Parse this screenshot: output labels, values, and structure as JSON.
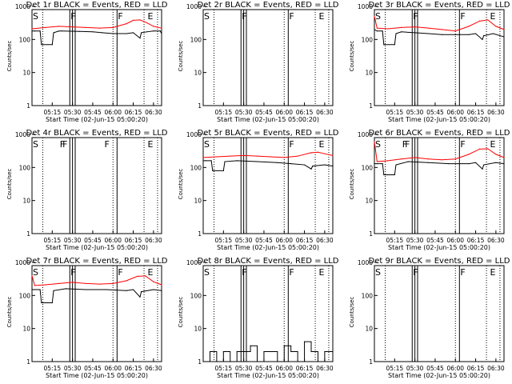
{
  "figure": {
    "start_label": "Start Time (02-Jun-15 05:00:20)",
    "x_tick_labels": [
      "05:15",
      "05:30",
      "05:45",
      "06:00",
      "06:15",
      "06:30"
    ],
    "y_axis_label": "Counts/sec",
    "y_tick_labels": [
      "1",
      "10",
      "100",
      "1000"
    ],
    "colors": {
      "events": "#000000",
      "lld": "#ff0000"
    }
  },
  "chart_data": [
    {
      "type": "line",
      "title": "Det 1r BLACK = Events, RED = LLD",
      "xlabel": "Start Time (02-Jun-15 05:00:20)",
      "ylabel": "Counts/sec",
      "yscale": "log",
      "ylim": [
        1,
        1000
      ],
      "flags": [
        {
          "label": "S",
          "x": 0
        },
        {
          "label": "F",
          "x": 28
        },
        {
          "label": "F",
          "x": 63
        },
        {
          "label": "E",
          "x": 85
        }
      ],
      "series": [
        {
          "name": "Events",
          "color": "#000000",
          "x": [
            0,
            2,
            6,
            7,
            15,
            16,
            20,
            22,
            35,
            45,
            52,
            60,
            70,
            75,
            80,
            81,
            85,
            90,
            95,
            96
          ],
          "y": [
            180,
            180,
            180,
            70,
            70,
            160,
            180,
            180,
            175,
            170,
            160,
            150,
            150,
            160,
            110,
            160,
            170,
            180,
            180,
            150
          ]
        },
        {
          "name": "LLD",
          "color": "#ff0000",
          "x": [
            0,
            10,
            20,
            30,
            40,
            50,
            60,
            70,
            75,
            80,
            85,
            90,
            96
          ],
          "y": [
            210,
            230,
            250,
            240,
            230,
            220,
            230,
            300,
            380,
            390,
            320,
            250,
            220
          ]
        }
      ]
    },
    {
      "type": "line",
      "title": "Det 2r BLACK = Events, RED = LLD",
      "xlabel": "Start Time (02-Jun-15 05:00:20)",
      "ylabel": "Counts/sec",
      "yscale": "log",
      "ylim": [
        1,
        1000
      ],
      "flags": [
        {
          "label": "S",
          "x": 0
        },
        {
          "label": "F",
          "x": 28
        },
        {
          "label": "F",
          "x": 63
        },
        {
          "label": "E",
          "x": 85
        }
      ],
      "series": []
    },
    {
      "type": "line",
      "title": "Det 3r BLACK = Events, RED = LLD",
      "xlabel": "Start Time (02-Jun-15 05:00:20)",
      "ylabel": "Counts/sec",
      "yscale": "log",
      "ylim": [
        1,
        1000
      ],
      "flags": [
        {
          "label": "S",
          "x": 0
        },
        {
          "label": "F",
          "x": 28
        },
        {
          "label": "F",
          "x": 63
        },
        {
          "label": "E",
          "x": 85
        }
      ],
      "series": [
        {
          "name": "Events",
          "color": "#000000",
          "x": [
            0,
            2,
            6,
            7,
            15,
            16,
            20,
            30,
            40,
            50,
            60,
            70,
            75,
            80,
            81,
            88,
            96
          ],
          "y": [
            200,
            180,
            180,
            70,
            70,
            150,
            170,
            160,
            150,
            140,
            140,
            140,
            150,
            100,
            130,
            150,
            120
          ]
        },
        {
          "name": "LLD",
          "color": "#ff0000",
          "x": [
            0,
            2,
            10,
            20,
            30,
            40,
            50,
            60,
            70,
            78,
            84,
            90,
            96
          ],
          "y": [
            500,
            220,
            210,
            230,
            240,
            220,
            200,
            180,
            250,
            360,
            390,
            250,
            200
          ]
        }
      ]
    },
    {
      "type": "line",
      "title": "Det 4r BLACK = Events, RED = LLD",
      "xlabel": "Start Time (02-Jun-15 05:00:20)",
      "ylabel": "Counts/sec",
      "yscale": "log",
      "ylim": [
        1,
        1000
      ],
      "flags": [
        {
          "label": "S",
          "x": 0
        },
        {
          "label": "F",
          "x": 20
        },
        {
          "label": "F",
          "x": 22
        },
        {
          "label": "F",
          "x": 53
        },
        {
          "label": "E",
          "x": 85
        }
      ],
      "series": []
    },
    {
      "type": "line",
      "title": "Det 5r BLACK = Events, RED = LLD",
      "xlabel": "Start Time (02-Jun-15 05:00:20)",
      "ylabel": "Counts/sec",
      "yscale": "log",
      "ylim": [
        1,
        1000
      ],
      "flags": [
        {
          "label": "S",
          "x": 0
        },
        {
          "label": "F",
          "x": 63
        },
        {
          "label": "E",
          "x": 85
        }
      ],
      "series": [
        {
          "name": "Events",
          "color": "#000000",
          "x": [
            0,
            2,
            6,
            7,
            15,
            16,
            25,
            40,
            55,
            65,
            75,
            80,
            81,
            90,
            96
          ],
          "y": [
            160,
            160,
            160,
            80,
            80,
            150,
            160,
            150,
            140,
            130,
            120,
            90,
            110,
            120,
            110
          ]
        },
        {
          "name": "LLD",
          "color": "#ff0000",
          "x": [
            0,
            10,
            20,
            30,
            40,
            50,
            60,
            70,
            80,
            85,
            90,
            96
          ],
          "y": [
            200,
            210,
            220,
            230,
            220,
            210,
            200,
            220,
            280,
            290,
            260,
            230
          ]
        }
      ]
    },
    {
      "type": "line",
      "title": "Det 6r BLACK = Events, RED = LLD",
      "xlabel": "Start Time (02-Jun-15 05:00:20)",
      "ylabel": "Counts/sec",
      "yscale": "log",
      "ylim": [
        1,
        1000
      ],
      "flags": [
        {
          "label": "S",
          "x": 0
        },
        {
          "label": "F",
          "x": 20
        },
        {
          "label": "F",
          "x": 22
        },
        {
          "label": "F",
          "x": 63
        },
        {
          "label": "E",
          "x": 85
        }
      ],
      "series": [
        {
          "name": "Events",
          "color": "#000000",
          "x": [
            0,
            2,
            6,
            7,
            15,
            16,
            25,
            40,
            55,
            70,
            75,
            80,
            81,
            90,
            96
          ],
          "y": [
            130,
            130,
            130,
            60,
            60,
            120,
            150,
            140,
            130,
            130,
            140,
            90,
            120,
            140,
            130
          ]
        },
        {
          "name": "LLD",
          "color": "#ff0000",
          "x": [
            0,
            2,
            10,
            20,
            30,
            40,
            50,
            60,
            70,
            78,
            84,
            90,
            96
          ],
          "y": [
            600,
            150,
            160,
            180,
            200,
            180,
            170,
            180,
            250,
            360,
            370,
            250,
            200
          ]
        }
      ]
    },
    {
      "type": "line",
      "title": "Det 7r BLACK = Events, RED = LLD",
      "xlabel": "Start Time (02-Jun-15 05:00:20)",
      "ylabel": "Counts/sec",
      "yscale": "log",
      "ylim": [
        1,
        1000
      ],
      "flags": [
        {
          "label": "S",
          "x": 0
        },
        {
          "label": "F",
          "x": 28
        },
        {
          "label": "F",
          "x": 63
        },
        {
          "label": "E",
          "x": 85
        }
      ],
      "series": [
        {
          "name": "Events",
          "color": "#000000",
          "x": [
            0,
            2,
            6,
            7,
            15,
            16,
            25,
            40,
            55,
            70,
            75,
            80,
            81,
            90,
            96
          ],
          "y": [
            150,
            150,
            150,
            60,
            60,
            140,
            160,
            150,
            150,
            140,
            150,
            90,
            130,
            150,
            140
          ]
        },
        {
          "name": "LLD",
          "color": "#ff0000",
          "x": [
            0,
            2,
            10,
            20,
            30,
            40,
            50,
            60,
            70,
            78,
            84,
            90,
            96
          ],
          "y": [
            400,
            200,
            210,
            230,
            250,
            230,
            220,
            230,
            280,
            380,
            390,
            260,
            210
          ]
        }
      ]
    },
    {
      "type": "line",
      "title": "Det 8r BLACK = Events, RED = LLD",
      "xlabel": "Start Time (02-Jun-15 05:00:20)",
      "ylabel": "Counts/sec",
      "yscale": "log",
      "ylim": [
        1,
        1000
      ],
      "flags": [
        {
          "label": "S",
          "x": 0
        },
        {
          "label": "F",
          "x": 28
        },
        {
          "label": "F",
          "x": 63
        },
        {
          "label": "E",
          "x": 85
        }
      ],
      "series": [
        {
          "name": "Events",
          "color": "#000000",
          "x": [
            0,
            5,
            10,
            15,
            20,
            25,
            30,
            35,
            40,
            45,
            50,
            55,
            60,
            65,
            70,
            75,
            80,
            85,
            90,
            96
          ],
          "y": [
            1,
            2,
            1,
            2,
            1,
            2,
            2,
            3,
            1,
            2,
            2,
            1,
            3,
            2,
            1,
            4,
            2,
            1,
            2,
            1
          ]
        }
      ]
    },
    {
      "type": "line",
      "title": "Det 9r BLACK = Events, RED = LLD",
      "xlabel": "Start Time (02-Jun-15 05:00:20)",
      "ylabel": "Counts/sec",
      "yscale": "log",
      "ylim": [
        1,
        1000
      ],
      "flags": [
        {
          "label": "S",
          "x": 0
        },
        {
          "label": "F",
          "x": 28
        },
        {
          "label": "F",
          "x": 63
        },
        {
          "label": "E",
          "x": 85
        }
      ],
      "series": []
    }
  ]
}
